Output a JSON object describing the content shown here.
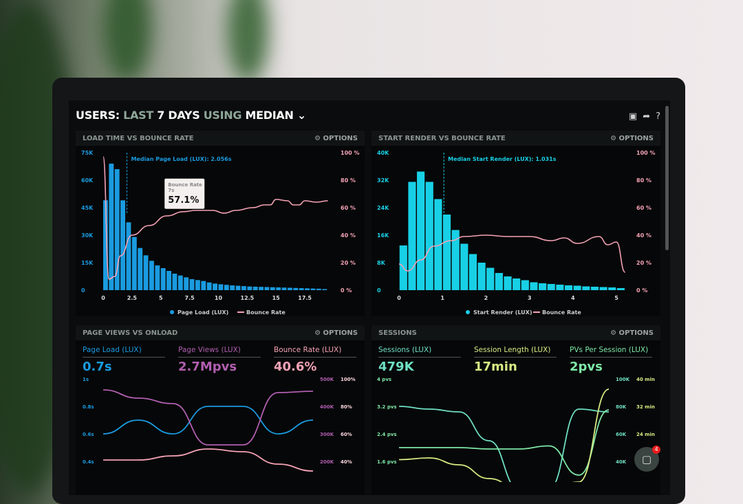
{
  "header": {
    "title_users": "USERS:",
    "title_last": "LAST",
    "title_days": "7 DAYS",
    "title_using": "USING",
    "title_median": "MEDIAN",
    "chevron": "chevron-down-icon",
    "tools": [
      "monitor-icon",
      "share-icon",
      "help-icon"
    ]
  },
  "options_label": "OPTIONS",
  "colors": {
    "blue": "#1a9be0",
    "cyan": "#18d0e6",
    "pink": "#f4a3b6",
    "purple": "#b05fb0",
    "teal": "#6fe0c4",
    "yellow": "#d7ec84",
    "green": "#7ee8a8"
  },
  "chart_data": [
    {
      "type": "bar",
      "title": "LOAD TIME VS BOUNCE RATE",
      "annotation": "Median Page Load (LUX): 2.056s",
      "median": 2.056,
      "tooltip": {
        "label": "Bounce Rate",
        "sub": "7s",
        "value": "57.1%"
      },
      "xticks": [
        "0",
        "2.5",
        "5",
        "7.5",
        "10",
        "12.5",
        "15",
        "17.5"
      ],
      "xlim": [
        0,
        20
      ],
      "yticks_left": [
        "0",
        "15K",
        "30K",
        "45K",
        "60K",
        "75K"
      ],
      "ylim_left": [
        0,
        75000
      ],
      "yticks_right": [
        "0 %",
        "20 %",
        "40 %",
        "60 %",
        "80 %",
        "100 %"
      ],
      "ylim_right": [
        0,
        100
      ],
      "legend": [
        "Page Load (LUX)",
        "Bounce Rate"
      ],
      "bar_start": 0,
      "bar_step": 0.5,
      "bars": [
        49000,
        69000,
        66000,
        49000,
        37000,
        29000,
        23000,
        19000,
        16000,
        13500,
        12000,
        10500,
        9000,
        8000,
        7000,
        6000,
        5500,
        5000,
        4200,
        3600,
        3200,
        2900,
        2600,
        2400,
        2200,
        2000,
        1900,
        1800,
        1700,
        1600,
        1500,
        1400,
        1300,
        1200,
        1100,
        1000,
        900,
        800,
        600
      ],
      "line": [
        [
          0,
          97
        ],
        [
          0.5,
          8
        ],
        [
          1,
          10
        ],
        [
          1.5,
          25
        ],
        [
          2.5,
          40
        ],
        [
          4,
          47
        ],
        [
          5.5,
          54
        ],
        [
          7,
          57.1
        ],
        [
          8,
          58
        ],
        [
          9.5,
          58
        ],
        [
          10.5,
          56
        ],
        [
          11.5,
          58
        ],
        [
          13,
          60
        ],
        [
          14,
          62
        ],
        [
          14.5,
          62
        ],
        [
          15,
          66
        ],
        [
          16,
          65
        ],
        [
          16.5,
          62
        ],
        [
          17,
          62
        ],
        [
          17.5,
          65
        ],
        [
          18.5,
          64
        ],
        [
          19.5,
          65
        ]
      ]
    },
    {
      "type": "bar",
      "title": "START RENDER VS BOUNCE RATE",
      "annotation": "Median Start Render (LUX): 1.031s",
      "median": 1.031,
      "xticks": [
        "0",
        "1",
        "2",
        "3",
        "4",
        "5"
      ],
      "xlim": [
        0,
        5.3
      ],
      "yticks_left": [
        "0",
        "8K",
        "16K",
        "24K",
        "32K",
        "40K"
      ],
      "ylim_left": [
        0,
        40000
      ],
      "yticks_right": [
        "0 %",
        "20 %",
        "40 %",
        "60 %",
        "80 %",
        "100 %"
      ],
      "ylim_right": [
        0,
        100
      ],
      "legend": [
        "Start Render (LUX)",
        "Bounce Rate"
      ],
      "bar_start": 0.1,
      "bar_step": 0.2,
      "bars": [
        13000,
        31500,
        34500,
        31500,
        26500,
        22000,
        17500,
        13500,
        10500,
        8000,
        6500,
        5000,
        4000,
        3400,
        2900,
        2300,
        2000,
        1800,
        1600,
        1400,
        1300,
        1100,
        1000,
        900,
        800,
        600
      ],
      "line": [
        [
          0,
          19
        ],
        [
          0.2,
          14
        ],
        [
          0.5,
          22
        ],
        [
          0.8,
          32
        ],
        [
          1.2,
          36
        ],
        [
          1.5,
          39
        ],
        [
          2,
          40
        ],
        [
          2.5,
          39
        ],
        [
          3,
          39
        ],
        [
          3.5,
          36
        ],
        [
          3.8,
          38
        ],
        [
          4.1,
          34
        ],
        [
          4.6,
          39
        ],
        [
          4.8,
          33
        ],
        [
          5,
          35
        ],
        [
          5.2,
          13
        ]
      ]
    },
    {
      "type": "line",
      "title": "PAGE VIEWS VS ONLOAD",
      "metrics": [
        {
          "label": "Page Load (LUX)",
          "value": "0.7s"
        },
        {
          "label": "Page Views (LUX)",
          "value": "2.7Mpvs"
        },
        {
          "label": "Bounce Rate (LUX)",
          "value": "40.6%"
        }
      ],
      "yticks_left": [
        "0.4s",
        "0.6s",
        "0.8s",
        "1s"
      ],
      "ylim_left": [
        0.4,
        1.0
      ],
      "yticks_right1": [
        "200K",
        "300K",
        "400K",
        "500K"
      ],
      "ylim_right1": [
        200000,
        500000
      ],
      "yticks_right2": [
        "40%",
        "60%",
        "80%",
        "100%"
      ],
      "ylim_right2": [
        40,
        100
      ],
      "series": [
        {
          "axis": "left",
          "values": [
            0.6,
            0.7,
            0.6,
            0.8,
            0.8,
            0.6,
            0.7
          ]
        },
        {
          "axis": "right1",
          "values": [
            460000,
            430000,
            410000,
            260000,
            260000,
            450000,
            455000
          ]
        },
        {
          "axis": "right2",
          "values": [
            41,
            41,
            44,
            49,
            47,
            38,
            33
          ]
        }
      ]
    },
    {
      "type": "line",
      "title": "SESSIONS",
      "metrics": [
        {
          "label": "Sessions (LUX)",
          "value": "479K"
        },
        {
          "label": "Session Length (LUX)",
          "value": "17min"
        },
        {
          "label": "PVs Per Session (LUX)",
          "value": "2pvs"
        }
      ],
      "yticks_left": [
        "1.6 pvs",
        "2.4 pvs",
        "3.2 pvs",
        "4 pvs"
      ],
      "ylim_left": [
        1.6,
        4
      ],
      "yticks_right1": [
        "40K",
        "60K",
        "80K",
        "100K"
      ],
      "ylim_right1": [
        40000,
        100000
      ],
      "yticks_right2": [
        "24 min",
        "32 min",
        "40 min"
      ],
      "ylim_right2": [
        16,
        40
      ],
      "series": [
        {
          "axis": "right1",
          "values": [
            80000,
            78000,
            76000,
            55000,
            20000,
            20000,
            78000,
            76000
          ]
        },
        {
          "axis": "left",
          "values": [
            2.0,
            2.0,
            2.0,
            1.96,
            1.96,
            2.05,
            1.2,
            3.1
          ]
        },
        {
          "axis": "right2",
          "values": [
            16.5,
            17,
            15,
            11,
            8,
            8,
            10,
            37
          ]
        }
      ]
    }
  ],
  "chat": {
    "badge": "4"
  }
}
